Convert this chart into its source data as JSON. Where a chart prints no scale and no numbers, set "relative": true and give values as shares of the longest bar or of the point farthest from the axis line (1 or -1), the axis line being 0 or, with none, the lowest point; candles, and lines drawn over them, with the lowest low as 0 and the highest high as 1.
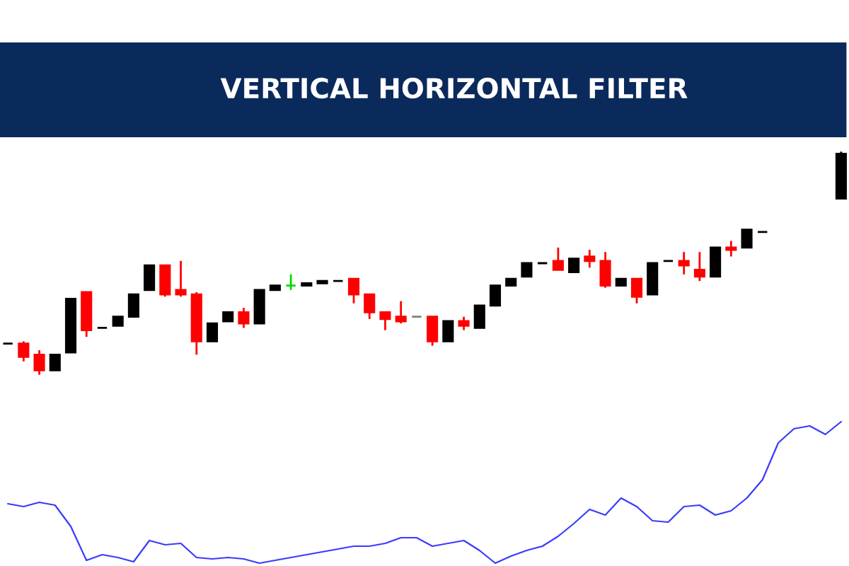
{
  "chart_data": [
    {
      "type": "candlestick",
      "title": "VERTICAL HORIZONTAL FILTER",
      "relative": true,
      "categories": [
        null,
        null,
        null,
        null,
        null,
        null,
        null,
        null,
        null,
        null,
        null,
        null,
        null,
        null,
        null,
        null,
        null,
        null,
        null,
        null,
        null,
        null,
        null,
        null,
        null,
        null,
        null,
        null,
        null,
        null,
        null,
        null,
        null,
        null,
        null,
        null,
        null,
        null,
        null,
        null,
        null,
        null,
        null,
        null,
        null,
        null,
        null,
        null,
        null,
        null,
        null,
        null,
        null,
        null
      ],
      "ohlc": [
        [
          0.14,
          0.14,
          0.14,
          0.14
        ],
        [
          0.14,
          0.15,
          0.06,
          0.08
        ],
        [
          0.09,
          0.11,
          0,
          0.02
        ],
        [
          0.02,
          0.09,
          0.02,
          0.09
        ],
        [
          0.1,
          0.34,
          0.1,
          0.34
        ],
        [
          0.37,
          0.37,
          0.17,
          0.2
        ],
        [
          0.21,
          0.21,
          0.21,
          0.21
        ],
        [
          0.22,
          0.26,
          0.22,
          0.26
        ],
        [
          0.26,
          0.36,
          0.26,
          0.36
        ],
        [
          0.38,
          0.49,
          0.38,
          0.49
        ],
        [
          0.49,
          0.49,
          0.35,
          0.36
        ],
        [
          0.38,
          0.51,
          0.35,
          0.36
        ],
        [
          0.36,
          0.37,
          0.09,
          0.15
        ],
        [
          0.15,
          0.23,
          0.15,
          0.23
        ],
        [
          0.24,
          0.28,
          0.24,
          0.28
        ],
        [
          0.28,
          0.3,
          0.21,
          0.23
        ],
        [
          0.23,
          0.38,
          0.23,
          0.38
        ],
        [
          0.38,
          0.4,
          0.38,
          0.4
        ],
        [
          0.4,
          0.45,
          0.38,
          0.4
        ],
        [
          0.4,
          0.41,
          0.4,
          0.41
        ],
        [
          0.41,
          0.42,
          0.41,
          0.42
        ],
        [
          0.42,
          0.42,
          0.42,
          0.42
        ],
        [
          0.43,
          0.43,
          0.32,
          0.36
        ],
        [
          0.36,
          0.36,
          0.25,
          0.28
        ],
        [
          0.28,
          0.28,
          0.2,
          0.25
        ],
        [
          0.26,
          0.33,
          0.23,
          0.24
        ],
        [
          0.26,
          0.26,
          0.26,
          0.26
        ],
        [
          0.26,
          0.26,
          0.13,
          0.15
        ],
        [
          0.15,
          0.24,
          0.15,
          0.24
        ],
        [
          0.24,
          0.26,
          0.2,
          0.22
        ],
        [
          0.21,
          0.31,
          0.21,
          0.31
        ],
        [
          0.31,
          0.4,
          0.31,
          0.4
        ],
        [
          0.4,
          0.43,
          0.4,
          0.43
        ],
        [
          0.44,
          0.5,
          0.44,
          0.5
        ],
        [
          0.5,
          0.5,
          0.5,
          0.5
        ],
        [
          0.51,
          0.57,
          0.47,
          0.47
        ],
        [
          0.46,
          0.52,
          0.46,
          0.52
        ],
        [
          0.53,
          0.56,
          0.48,
          0.51
        ],
        [
          0.51,
          0.55,
          0.39,
          0.4
        ],
        [
          0.4,
          0.43,
          0.4,
          0.43
        ],
        [
          0.43,
          0.43,
          0.32,
          0.35
        ],
        [
          0.36,
          0.5,
          0.36,
          0.5
        ],
        [
          0.51,
          0.51,
          0.51,
          0.51
        ],
        [
          0.51,
          0.55,
          0.45,
          0.49
        ],
        [
          0.47,
          0.55,
          0.42,
          0.44
        ],
        [
          0.44,
          0.57,
          0.44,
          0.57
        ],
        [
          0.57,
          0.6,
          0.53,
          0.56
        ],
        [
          0.57,
          0.65,
          0.57,
          0.65
        ],
        [
          0.64,
          0.64,
          0.64,
          0.64
        ],
        null,
        null,
        null,
        null,
        [
          0.79,
          1.0,
          0.79,
          0.99
        ]
      ],
      "colors": [
        "#000000",
        "#ff0000",
        "#ff0000",
        "#000000",
        "#000000",
        "#ff0000",
        "#000000",
        "#000000",
        "#000000",
        "#000000",
        "#ff0000",
        "#ff0000",
        "#ff0000",
        "#000000",
        "#000000",
        "#ff0000",
        "#000000",
        "#000000",
        "#00dd00",
        "#000000",
        "#000000",
        "#000000",
        "#ff0000",
        "#ff0000",
        "#ff0000",
        "#ff0000",
        "#808080",
        "#ff0000",
        "#000000",
        "#ff0000",
        "#000000",
        "#000000",
        "#000000",
        "#000000",
        "#000000",
        "#ff0000",
        "#000000",
        "#ff0000",
        "#ff0000",
        "#000000",
        "#ff0000",
        "#000000",
        "#000000",
        "#ff0000",
        "#ff0000",
        "#000000",
        "#ff0000",
        "#000000",
        "#000000",
        "#000000",
        "#000000",
        "#000000",
        "#000000",
        "#000000"
      ]
    },
    {
      "type": "line",
      "relative": true,
      "categories": [
        null,
        null,
        null,
        null,
        null,
        null,
        null,
        null,
        null,
        null,
        null,
        null,
        null,
        null,
        null,
        null,
        null,
        null,
        null,
        null,
        null,
        null,
        null,
        null,
        null,
        null,
        null,
        null,
        null,
        null,
        null,
        null,
        null,
        null,
        null,
        null,
        null,
        null,
        null,
        null,
        null,
        null,
        null,
        null,
        null,
        null,
        null,
        null,
        null,
        null,
        null,
        null,
        null,
        null
      ],
      "series": [
        {
          "color": "#3a3aff",
          "values": [
            0.42,
            0.4,
            0.43,
            0.41,
            0.26,
            0.02,
            0.06,
            0.04,
            0.01,
            0.16,
            0.13,
            0.14,
            0.04,
            0.03,
            0.04,
            0.03,
            0,
            0.02,
            0.04,
            0.06,
            0.08,
            0.1,
            0.12,
            0.12,
            0.14,
            0.18,
            0.18,
            0.12,
            0.14,
            0.16,
            0.09,
            0,
            0.05,
            0.09,
            0.12,
            0.19,
            0.28,
            0.38,
            0.34,
            0.46,
            0.4,
            0.3,
            0.29,
            0.4,
            0.41,
            0.34,
            0.37,
            0.46,
            0.59,
            0.85,
            0.95,
            0.97,
            0.91,
            1
          ]
        }
      ]
    }
  ]
}
